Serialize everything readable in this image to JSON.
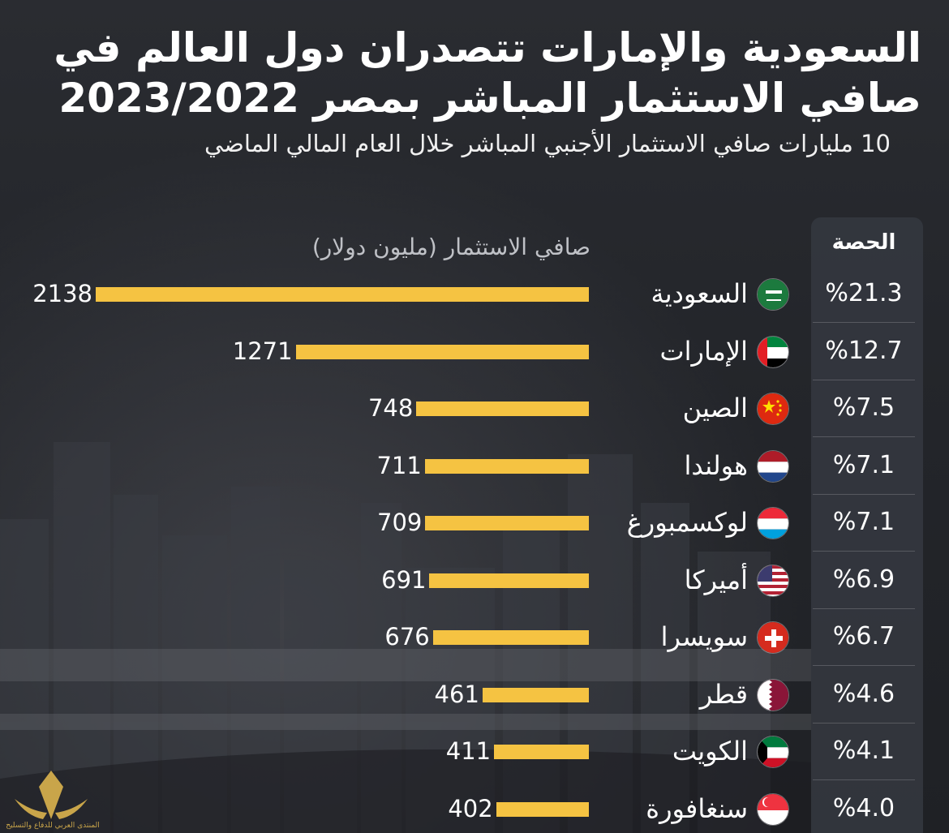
{
  "header": {
    "title": "السعودية والإمارات تتصدران دول العالم في صافي الاستثمار المباشر بمصر 2023/2022",
    "subtitle": "10 مليارات صافي الاستثمار الأجنبي المباشر خلال العام المالي الماضي"
  },
  "columns": {
    "share": "الحصة",
    "value": "صافي الاستثمار (مليون دولار)"
  },
  "colors": {
    "bar": "#f5c342",
    "background": "#26282d",
    "panel": "#343840"
  },
  "watermark": {
    "text": "المنتدى العربي للدفاع والتسليح"
  },
  "chart_data": {
    "type": "bar",
    "orientation": "horizontal",
    "title": "السعودية والإمارات تتصدران دول العالم في صافي الاستثمار المباشر بمصر 2023/2022",
    "subtitle": "10 مليارات صافي الاستثمار الأجنبي المباشر خلال العام المالي الماضي",
    "xlabel": "صافي الاستثمار (مليون دولار)",
    "ylabel": "",
    "xlim": [
      0,
      2138
    ],
    "grid": false,
    "rows": [
      {
        "country": "السعودية",
        "flag": "saudi-arabia-flag-icon",
        "value": 2138,
        "share": "%21.3"
      },
      {
        "country": "الإمارات",
        "flag": "uae-flag-icon",
        "value": 1271,
        "share": "%12.7"
      },
      {
        "country": "الصين",
        "flag": "china-flag-icon",
        "value": 748,
        "share": "%7.5"
      },
      {
        "country": "هولندا",
        "flag": "netherlands-flag-icon",
        "value": 711,
        "share": "%7.1"
      },
      {
        "country": "لوكسمبورغ",
        "flag": "luxembourg-flag-icon",
        "value": 709,
        "share": "%7.1"
      },
      {
        "country": "أميركا",
        "flag": "usa-flag-icon",
        "value": 691,
        "share": "%6.9"
      },
      {
        "country": "سويسرا",
        "flag": "switzerland-flag-icon",
        "value": 676,
        "share": "%6.7"
      },
      {
        "country": "قطر",
        "flag": "qatar-flag-icon",
        "value": 461,
        "share": "%4.6"
      },
      {
        "country": "الكويت",
        "flag": "kuwait-flag-icon",
        "value": 411,
        "share": "%4.1"
      },
      {
        "country": "سنغافورة",
        "flag": "singapore-flag-icon",
        "value": 402,
        "share": "%4.0"
      }
    ]
  }
}
